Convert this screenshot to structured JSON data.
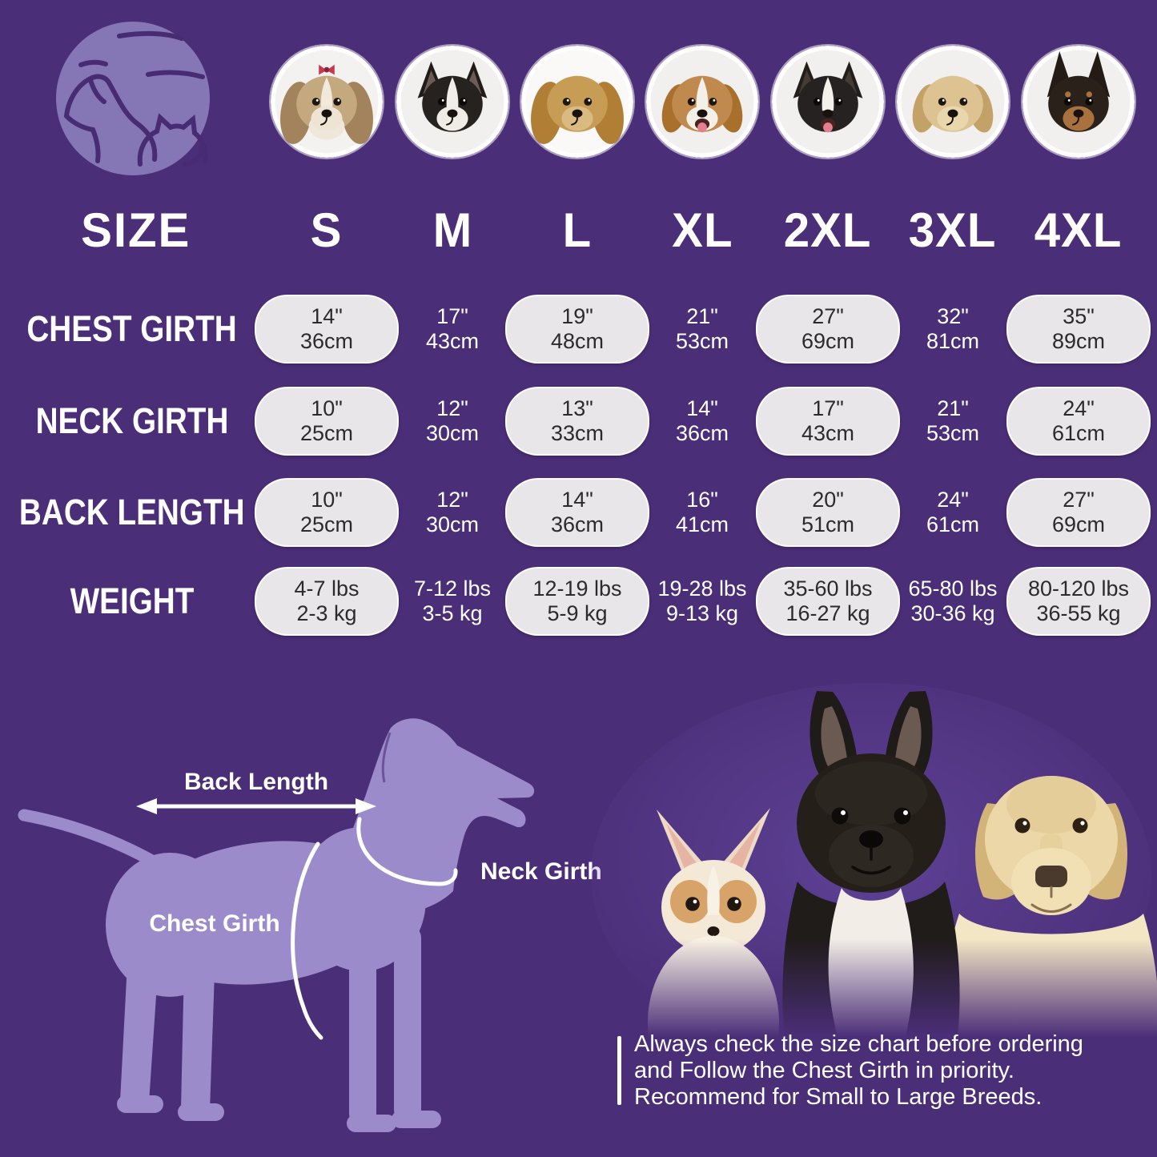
{
  "header": {
    "corner_label": "SIZE",
    "sizes": [
      "S",
      "M",
      "L",
      "XL",
      "2XL",
      "3XL",
      "4XL"
    ],
    "breeds": [
      "Shih Tzu",
      "Boston Terrier",
      "Cocker Spaniel",
      "Beagle",
      "Border Collie",
      "Labrador Retriever",
      "Doberman"
    ]
  },
  "table": {
    "rows": [
      {
        "label": "CHEST GIRTH",
        "cells": [
          [
            "14\"",
            "36cm"
          ],
          [
            "17\"",
            "43cm"
          ],
          [
            "19\"",
            "48cm"
          ],
          [
            "21\"",
            "53cm"
          ],
          [
            "27\"",
            "69cm"
          ],
          [
            "32\"",
            "81cm"
          ],
          [
            "35\"",
            "89cm"
          ]
        ]
      },
      {
        "label": "NECK GIRTH",
        "cells": [
          [
            "10\"",
            "25cm"
          ],
          [
            "12\"",
            "30cm"
          ],
          [
            "13\"",
            "33cm"
          ],
          [
            "14\"",
            "36cm"
          ],
          [
            "17\"",
            "43cm"
          ],
          [
            "21\"",
            "53cm"
          ],
          [
            "24\"",
            "61cm"
          ]
        ]
      },
      {
        "label": "BACK LENGTH",
        "cells": [
          [
            "10\"",
            "25cm"
          ],
          [
            "12\"",
            "30cm"
          ],
          [
            "14\"",
            "36cm"
          ],
          [
            "16\"",
            "41cm"
          ],
          [
            "20\"",
            "51cm"
          ],
          [
            "24\"",
            "61cm"
          ],
          [
            "27\"",
            "69cm"
          ]
        ]
      },
      {
        "label": "WEIGHT",
        "cells": [
          [
            "4-7 lbs",
            "2-3 kg"
          ],
          [
            "7-12 lbs",
            "3-5 kg"
          ],
          [
            "12-19 lbs",
            "5-9 kg"
          ],
          [
            "19-28 lbs",
            "9-13 kg"
          ],
          [
            "35-60 lbs",
            "16-27 kg"
          ],
          [
            "65-80 lbs",
            "30-36 kg"
          ],
          [
            "80-120 lbs",
            "36-55 kg"
          ]
        ]
      }
    ]
  },
  "diagram": {
    "back_length_label": "Back Length",
    "neck_girth_label": "Neck Girth",
    "chest_girth_label": "Chest Girth"
  },
  "note": {
    "lines": [
      "Always check the size chart before ordering",
      "and Follow the Chest Girth in priority.",
      "Recommend for Small to Large Breeds."
    ]
  },
  "colors": {
    "background": "#4B2E78",
    "pill": "#E9E6E9",
    "pill_text": "#2B2B2B",
    "text": "#FFFFFF",
    "silhouette": "#9C8BCB",
    "logo_circle": "#8577B5",
    "logo_line": "#472B73"
  }
}
